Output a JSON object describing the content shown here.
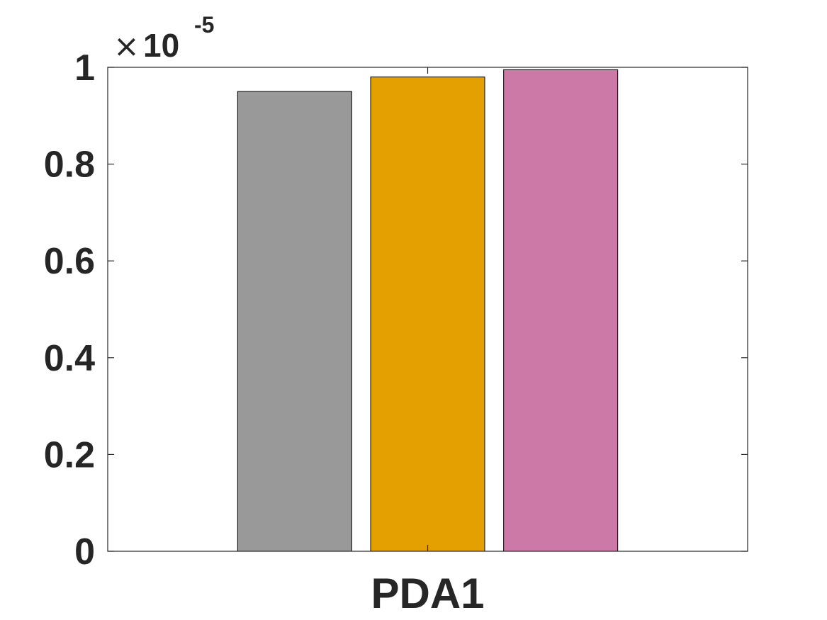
{
  "chart_data": {
    "type": "bar",
    "categories": [
      "PDA1"
    ],
    "series": [
      {
        "values": [
          9.5e-06
        ],
        "color": "#999999"
      },
      {
        "values": [
          9.8e-06
        ],
        "color": "#E3A000"
      },
      {
        "values": [
          9.95e-06
        ],
        "color": "#CC79A7"
      }
    ],
    "ylim": [
      0,
      1e-05
    ],
    "yticks": [
      0,
      0.2,
      0.4,
      0.6,
      0.8,
      1
    ],
    "ytick_labels": [
      "0",
      "0.2",
      "0.4",
      "0.6",
      "0.8",
      "1"
    ],
    "y_exponent_label": {
      "times": "×",
      "base": "10",
      "power": "-5"
    },
    "grid": false,
    "legend": "none"
  }
}
